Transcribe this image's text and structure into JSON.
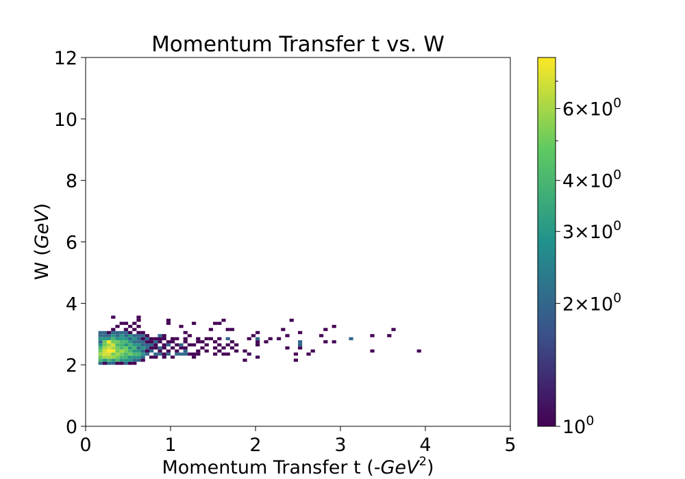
{
  "chart_data": {
    "type": "heatmap",
    "title": "Momentum Transfer t vs. W",
    "xlabel": "Momentum Transfer t (-",
    "xlabel_math": "GeV",
    "xlabel_sup": "2",
    "xlabel_close": ")",
    "ylabel": "W (",
    "ylabel_math": "GeV",
    "ylabel_close": ")",
    "xlim": [
      0,
      5
    ],
    "ylim": [
      0,
      12
    ],
    "xticks": [
      0,
      1,
      2,
      3,
      4,
      5
    ],
    "yticks": [
      0,
      2,
      4,
      6,
      8,
      10,
      12
    ],
    "bin_width": [
      0.05,
      0.1
    ],
    "colorbar": {
      "scale": "log",
      "range": [
        1,
        8
      ],
      "colormap": [
        "#440154",
        "#3b528b",
        "#21918c",
        "#5ec962",
        "#fde725"
      ],
      "ticks": [
        {
          "value": 1,
          "base": "10",
          "exp": "0"
        },
        {
          "value": 2,
          "mant": "2",
          "times": "×",
          "base": "10",
          "exp": "0"
        },
        {
          "value": 3,
          "mant": "3",
          "times": "×",
          "base": "10",
          "exp": "0"
        },
        {
          "value": 4,
          "mant": "4",
          "times": "×",
          "base": "10",
          "exp": "0"
        },
        {
          "value": 6,
          "mant": "6",
          "times": "×",
          "base": "10",
          "exp": "0"
        }
      ]
    },
    "bins": [
      [
        0.15,
        2.0,
        2
      ],
      [
        0.15,
        2.1,
        4
      ],
      [
        0.15,
        2.2,
        5
      ],
      [
        0.15,
        2.3,
        6
      ],
      [
        0.15,
        2.4,
        5
      ],
      [
        0.15,
        2.5,
        4
      ],
      [
        0.15,
        2.6,
        3
      ],
      [
        0.15,
        2.7,
        2
      ],
      [
        0.15,
        2.8,
        3
      ],
      [
        0.15,
        2.9,
        2
      ],
      [
        0.15,
        3.0,
        2
      ],
      [
        0.2,
        2.0,
        1
      ],
      [
        0.2,
        2.1,
        3
      ],
      [
        0.2,
        2.2,
        6
      ],
      [
        0.2,
        2.3,
        7
      ],
      [
        0.2,
        2.4,
        7
      ],
      [
        0.2,
        2.5,
        6
      ],
      [
        0.2,
        2.6,
        5
      ],
      [
        0.2,
        2.7,
        5
      ],
      [
        0.2,
        2.8,
        3
      ],
      [
        0.2,
        2.9,
        2
      ],
      [
        0.2,
        3.0,
        2
      ],
      [
        0.25,
        2.0,
        2
      ],
      [
        0.25,
        2.1,
        4
      ],
      [
        0.25,
        2.2,
        6
      ],
      [
        0.25,
        2.3,
        7
      ],
      [
        0.25,
        2.4,
        8
      ],
      [
        0.25,
        2.5,
        7
      ],
      [
        0.25,
        2.6,
        6
      ],
      [
        0.25,
        2.7,
        8
      ],
      [
        0.25,
        2.8,
        3
      ],
      [
        0.25,
        2.9,
        2
      ],
      [
        0.25,
        3.0,
        1
      ],
      [
        0.3,
        2.0,
        2
      ],
      [
        0.3,
        2.1,
        3
      ],
      [
        0.3,
        2.2,
        6
      ],
      [
        0.3,
        2.3,
        5
      ],
      [
        0.3,
        2.4,
        8
      ],
      [
        0.3,
        2.5,
        6
      ],
      [
        0.3,
        2.6,
        7
      ],
      [
        0.3,
        2.7,
        5
      ],
      [
        0.3,
        2.8,
        4
      ],
      [
        0.3,
        2.9,
        3
      ],
      [
        0.3,
        3.0,
        2
      ],
      [
        0.3,
        3.1,
        1
      ],
      [
        0.3,
        3.5,
        1
      ],
      [
        0.35,
        2.0,
        1
      ],
      [
        0.35,
        2.1,
        4
      ],
      [
        0.35,
        2.2,
        5
      ],
      [
        0.35,
        2.3,
        6
      ],
      [
        0.35,
        2.4,
        5
      ],
      [
        0.35,
        2.5,
        5
      ],
      [
        0.35,
        2.6,
        4
      ],
      [
        0.35,
        2.7,
        5
      ],
      [
        0.35,
        2.8,
        3
      ],
      [
        0.35,
        2.9,
        2
      ],
      [
        0.35,
        3.0,
        2
      ],
      [
        0.35,
        3.2,
        1
      ],
      [
        0.4,
        2.0,
        1
      ],
      [
        0.4,
        2.1,
        3
      ],
      [
        0.4,
        2.2,
        4
      ],
      [
        0.4,
        2.3,
        5
      ],
      [
        0.4,
        2.4,
        6
      ],
      [
        0.4,
        2.5,
        4
      ],
      [
        0.4,
        2.6,
        4
      ],
      [
        0.4,
        2.7,
        4
      ],
      [
        0.4,
        2.8,
        3
      ],
      [
        0.4,
        2.9,
        3
      ],
      [
        0.4,
        3.0,
        2
      ],
      [
        0.4,
        3.3,
        1
      ],
      [
        0.45,
        2.0,
        2
      ],
      [
        0.45,
        2.1,
        3
      ],
      [
        0.45,
        2.2,
        4
      ],
      [
        0.45,
        2.3,
        4
      ],
      [
        0.45,
        2.4,
        5
      ],
      [
        0.45,
        2.5,
        5
      ],
      [
        0.45,
        2.6,
        3
      ],
      [
        0.45,
        2.7,
        4
      ],
      [
        0.45,
        2.8,
        3
      ],
      [
        0.45,
        2.9,
        2
      ],
      [
        0.45,
        3.0,
        2
      ],
      [
        0.45,
        3.1,
        1
      ],
      [
        0.45,
        3.3,
        1
      ],
      [
        0.5,
        2.0,
        1
      ],
      [
        0.5,
        2.1,
        3
      ],
      [
        0.5,
        2.2,
        3
      ],
      [
        0.5,
        2.3,
        5
      ],
      [
        0.5,
        2.4,
        4
      ],
      [
        0.5,
        2.5,
        3
      ],
      [
        0.5,
        2.6,
        4
      ],
      [
        0.5,
        2.7,
        3
      ],
      [
        0.5,
        2.8,
        2
      ],
      [
        0.5,
        2.9,
        3
      ],
      [
        0.5,
        3.0,
        1
      ],
      [
        0.5,
        3.2,
        1
      ],
      [
        0.55,
        2.0,
        1
      ],
      [
        0.55,
        2.1,
        2
      ],
      [
        0.55,
        2.2,
        3
      ],
      [
        0.55,
        2.3,
        4
      ],
      [
        0.55,
        2.4,
        3
      ],
      [
        0.55,
        2.5,
        4
      ],
      [
        0.55,
        2.6,
        3
      ],
      [
        0.55,
        2.7,
        2
      ],
      [
        0.55,
        2.8,
        3
      ],
      [
        0.55,
        2.9,
        2
      ],
      [
        0.55,
        3.1,
        1
      ],
      [
        0.55,
        3.3,
        1
      ],
      [
        0.6,
        2.1,
        2
      ],
      [
        0.6,
        2.2,
        3
      ],
      [
        0.6,
        2.3,
        4
      ],
      [
        0.6,
        2.4,
        3
      ],
      [
        0.6,
        2.5,
        2
      ],
      [
        0.6,
        2.6,
        3
      ],
      [
        0.6,
        2.7,
        2
      ],
      [
        0.6,
        2.8,
        2
      ],
      [
        0.6,
        2.9,
        2
      ],
      [
        0.6,
        3.0,
        1
      ],
      [
        0.6,
        3.2,
        1
      ],
      [
        0.6,
        3.4,
        1
      ],
      [
        0.6,
        3.5,
        1
      ],
      [
        0.65,
        2.1,
        1
      ],
      [
        0.65,
        2.2,
        2
      ],
      [
        0.65,
        2.3,
        3
      ],
      [
        0.65,
        2.4,
        2
      ],
      [
        0.65,
        2.5,
        3
      ],
      [
        0.65,
        2.6,
        2
      ],
      [
        0.65,
        2.7,
        2
      ],
      [
        0.65,
        2.8,
        1
      ],
      [
        0.65,
        2.9,
        2
      ],
      [
        0.65,
        3.0,
        1
      ],
      [
        0.7,
        2.3,
        2
      ],
      [
        0.7,
        2.4,
        1
      ],
      [
        0.7,
        2.5,
        2
      ],
      [
        0.7,
        2.6,
        2
      ],
      [
        0.7,
        2.7,
        1
      ],
      [
        0.7,
        2.8,
        2
      ],
      [
        0.7,
        2.9,
        1
      ],
      [
        0.75,
        2.2,
        1
      ],
      [
        0.75,
        2.4,
        2
      ],
      [
        0.75,
        2.5,
        1
      ],
      [
        0.75,
        2.6,
        2
      ],
      [
        0.75,
        2.7,
        1
      ],
      [
        0.75,
        2.8,
        1
      ],
      [
        0.8,
        2.2,
        1
      ],
      [
        0.8,
        2.3,
        2
      ],
      [
        0.8,
        2.5,
        1
      ],
      [
        0.8,
        2.6,
        1
      ],
      [
        0.8,
        2.7,
        2
      ],
      [
        0.8,
        2.8,
        1
      ],
      [
        0.85,
        2.3,
        2
      ],
      [
        0.85,
        2.4,
        1
      ],
      [
        0.85,
        2.5,
        2
      ],
      [
        0.85,
        2.7,
        1
      ],
      [
        0.85,
        2.8,
        1
      ],
      [
        0.85,
        2.9,
        2
      ],
      [
        0.9,
        2.2,
        1
      ],
      [
        0.9,
        2.3,
        1
      ],
      [
        0.9,
        2.5,
        1
      ],
      [
        0.9,
        2.6,
        1
      ],
      [
        0.9,
        2.8,
        1
      ],
      [
        0.9,
        2.9,
        1
      ],
      [
        0.95,
        2.3,
        2
      ],
      [
        0.95,
        2.4,
        1
      ],
      [
        0.95,
        2.6,
        2
      ],
      [
        0.95,
        2.7,
        1
      ],
      [
        0.95,
        3.3,
        1
      ],
      [
        0.95,
        3.4,
        1
      ],
      [
        1.0,
        2.2,
        1
      ],
      [
        1.0,
        2.5,
        1
      ],
      [
        1.0,
        2.7,
        1
      ],
      [
        1.0,
        2.8,
        1
      ],
      [
        1.05,
        2.3,
        2
      ],
      [
        1.05,
        2.4,
        1
      ],
      [
        1.05,
        2.6,
        1
      ],
      [
        1.05,
        2.8,
        1
      ],
      [
        1.1,
        2.3,
        2
      ],
      [
        1.1,
        2.5,
        1
      ],
      [
        1.1,
        2.6,
        2
      ],
      [
        1.1,
        3.2,
        1
      ],
      [
        1.15,
        2.3,
        2
      ],
      [
        1.15,
        2.4,
        2
      ],
      [
        1.15,
        2.5,
        1
      ],
      [
        1.15,
        2.7,
        1
      ],
      [
        1.15,
        2.8,
        1
      ],
      [
        1.15,
        3.0,
        1
      ],
      [
        1.2,
        2.3,
        1
      ],
      [
        1.2,
        2.6,
        1
      ],
      [
        1.2,
        2.9,
        1
      ],
      [
        1.25,
        2.2,
        1
      ],
      [
        1.25,
        2.3,
        1
      ],
      [
        1.25,
        2.6,
        1
      ],
      [
        1.25,
        3.3,
        1
      ],
      [
        1.3,
        2.3,
        1
      ],
      [
        1.3,
        2.4,
        1
      ],
      [
        1.3,
        2.7,
        1
      ],
      [
        1.3,
        2.8,
        1
      ],
      [
        1.35,
        2.5,
        1
      ],
      [
        1.35,
        2.7,
        1
      ],
      [
        1.4,
        2.4,
        1
      ],
      [
        1.4,
        2.6,
        1
      ],
      [
        1.4,
        2.8,
        1
      ],
      [
        1.45,
        2.8,
        1
      ],
      [
        1.45,
        3.1,
        1
      ],
      [
        1.5,
        2.3,
        1
      ],
      [
        1.5,
        2.5,
        1
      ],
      [
        1.5,
        2.7,
        1
      ],
      [
        1.5,
        3.3,
        1
      ],
      [
        1.55,
        2.4,
        1
      ],
      [
        1.55,
        2.6,
        1
      ],
      [
        1.55,
        2.8,
        1
      ],
      [
        1.55,
        3.3,
        1
      ],
      [
        1.6,
        2.3,
        1
      ],
      [
        1.6,
        2.5,
        1
      ],
      [
        1.6,
        3.4,
        1
      ],
      [
        1.65,
        2.3,
        1
      ],
      [
        1.65,
        2.6,
        1
      ],
      [
        1.65,
        2.8,
        2
      ],
      [
        1.65,
        3.1,
        1
      ],
      [
        1.7,
        2.5,
        1
      ],
      [
        1.7,
        2.7,
        1
      ],
      [
        1.7,
        3.1,
        1
      ],
      [
        1.75,
        2.4,
        1
      ],
      [
        1.75,
        2.6,
        1
      ],
      [
        1.85,
        2.1,
        1
      ],
      [
        1.85,
        2.4,
        1
      ],
      [
        1.9,
        2.3,
        1
      ],
      [
        1.9,
        2.8,
        1
      ],
      [
        1.95,
        2.9,
        1
      ],
      [
        2.0,
        2.2,
        1
      ],
      [
        2.0,
        2.6,
        1
      ],
      [
        2.0,
        2.7,
        1
      ],
      [
        2.0,
        2.8,
        2
      ],
      [
        2.0,
        3.0,
        1
      ],
      [
        2.1,
        2.7,
        1
      ],
      [
        2.15,
        2.8,
        1
      ],
      [
        2.25,
        2.8,
        1
      ],
      [
        2.3,
        3.1,
        1
      ],
      [
        2.35,
        2.5,
        1
      ],
      [
        2.35,
        2.9,
        1
      ],
      [
        2.4,
        3.4,
        1
      ],
      [
        2.45,
        2.1,
        1
      ],
      [
        2.45,
        2.3,
        1
      ],
      [
        2.5,
        2.5,
        1
      ],
      [
        2.5,
        2.6,
        2
      ],
      [
        2.5,
        2.7,
        2
      ],
      [
        2.5,
        3.0,
        1
      ],
      [
        2.6,
        2.3,
        1
      ],
      [
        2.65,
        2.4,
        1
      ],
      [
        2.75,
        2.9,
        1
      ],
      [
        2.8,
        2.7,
        1
      ],
      [
        2.8,
        3.1,
        1
      ],
      [
        2.9,
        2.7,
        1
      ],
      [
        2.9,
        3.2,
        1
      ],
      [
        3.1,
        2.8,
        2
      ],
      [
        3.35,
        2.4,
        1
      ],
      [
        3.35,
        2.9,
        1
      ],
      [
        3.55,
        2.9,
        1
      ],
      [
        3.6,
        3.1,
        1
      ],
      [
        3.9,
        2.4,
        1
      ]
    ]
  }
}
